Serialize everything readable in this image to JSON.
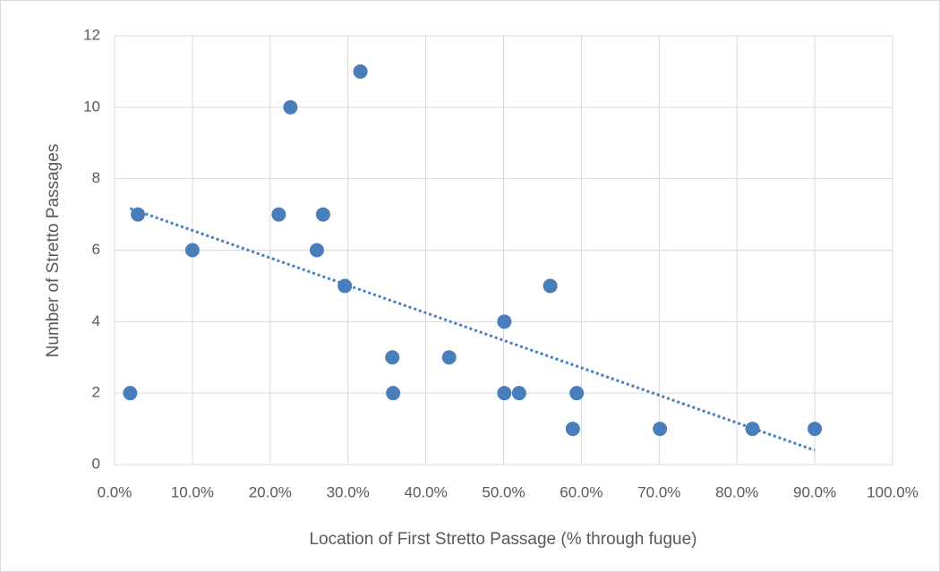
{
  "chart_data": {
    "type": "scatter",
    "x_label": "Location of First Stretto Passage (% through fugue)",
    "y_label": "Number of Stretto Passages",
    "series": [
      {
        "color": "#4a7ebb",
        "x": [
          2,
          3,
          10,
          21.1,
          22.6,
          26,
          26.8,
          29.6,
          31.6,
          35.7,
          35.8,
          43,
          50.1,
          50.1,
          52,
          56,
          58.9,
          59.4,
          70.1,
          82,
          90
        ],
        "values": [
          2,
          7,
          6,
          7,
          10,
          6,
          7,
          5,
          11,
          3,
          2,
          3,
          4,
          2,
          2,
          5,
          1,
          2,
          1,
          1,
          1
        ]
      }
    ],
    "trendline": {
      "color": "#4a7ebb",
      "x": [
        2,
        90
      ],
      "values": [
        7.17,
        0.4
      ]
    },
    "xlim": [
      0,
      100
    ],
    "xticks": [
      {
        "value": 0,
        "label": "0.0%"
      },
      {
        "value": 10,
        "label": "10.0%"
      },
      {
        "value": 20,
        "label": "20.0%"
      },
      {
        "value": 30,
        "label": "30.0%"
      },
      {
        "value": 40,
        "label": "40.0%"
      },
      {
        "value": 50,
        "label": "50.0%"
      },
      {
        "value": 60,
        "label": "60.0%"
      },
      {
        "value": 70,
        "label": "70.0%"
      },
      {
        "value": 80,
        "label": "80.0%"
      },
      {
        "value": 90,
        "label": "90.0%"
      },
      {
        "value": 100,
        "label": "100.0%"
      }
    ],
    "ylim": [
      0,
      12
    ],
    "yticks": [
      0,
      2,
      4,
      6,
      8,
      10,
      12
    ],
    "grid": true
  }
}
